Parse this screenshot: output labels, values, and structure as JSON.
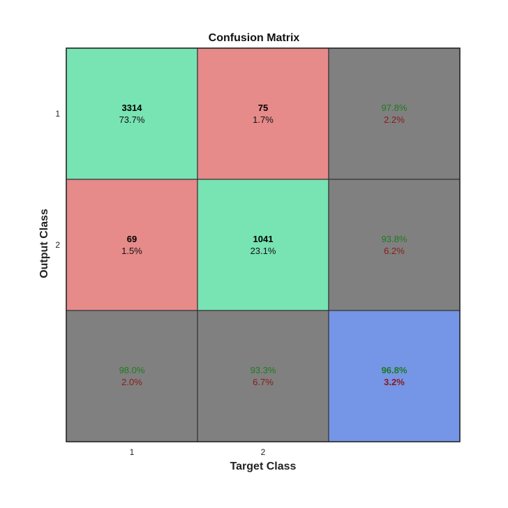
{
  "chart_data": {
    "type": "heatmap",
    "title": "Confusion Matrix",
    "xlabel": "Target Class",
    "ylabel": "Output Class",
    "x_tick_labels": [
      "1",
      "2"
    ],
    "y_tick_labels": [
      "1",
      "2"
    ],
    "matrix": [
      [
        {
          "count": "3314",
          "percent": "73.7%"
        },
        {
          "count": "75",
          "percent": "1.7%"
        }
      ],
      [
        {
          "count": "69",
          "percent": "1.5%"
        },
        {
          "count": "1041",
          "percent": "23.1%"
        }
      ]
    ],
    "row_summary": [
      {
        "correct": "97.8%",
        "wrong": "2.2%"
      },
      {
        "correct": "93.8%",
        "wrong": "6.2%"
      }
    ],
    "col_summary": [
      {
        "correct": "98.0%",
        "wrong": "2.0%"
      },
      {
        "correct": "93.3%",
        "wrong": "6.7%"
      }
    ],
    "overall": {
      "correct": "96.8%",
      "wrong": "3.2%"
    },
    "colors": {
      "correct_cell": "#78E3B3",
      "incorrect_cell": "#E68A8A",
      "summary_cell": "#808080",
      "overall_cell": "#7595E6",
      "correct_text": "#1E7A1E",
      "wrong_text": "#8A1A1A"
    }
  }
}
